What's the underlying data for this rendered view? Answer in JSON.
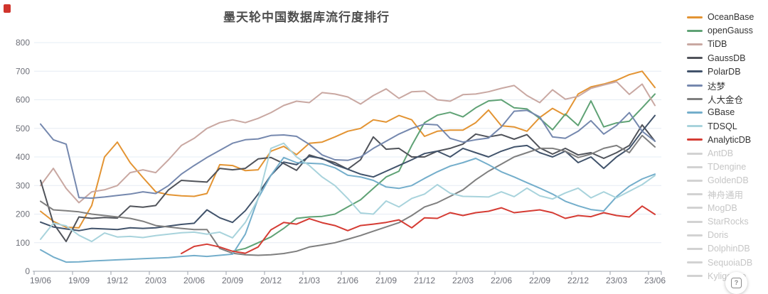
{
  "title": "墨天轮中国数据库流行度排行",
  "colors": {
    "title_text": "#4e4e4e",
    "axis_label": "#6E7079",
    "axis_line": "#9da3ac",
    "grid_line": "#e6ecf4",
    "legend_active_text": "#333333",
    "legend_inactive_text": "#c6c6c6",
    "legend_inactive_swatch": "#d2d2d2",
    "corner_mark": "#d0342c"
  },
  "help_button": {
    "label": "?"
  },
  "chart_data": {
    "type": "line",
    "title": "墨天轮中国数据库流行度排行",
    "xlabel": "",
    "ylabel": "",
    "ylim": [
      0,
      800
    ],
    "y_tick_labels": [
      "0",
      "100",
      "200",
      "300",
      "400",
      "500",
      "600",
      "700",
      "800"
    ],
    "x_tick_labels": [
      "19/06",
      "19/09",
      "19/12",
      "20/03",
      "20/06",
      "20/09",
      "20/12",
      "21/03",
      "21/06",
      "21/09",
      "21/12",
      "22/03",
      "22/06",
      "22/09",
      "22/12",
      "23/03",
      "23/06"
    ],
    "x_unit": "month",
    "points_per_series": 49,
    "grid": true,
    "legend_position": "right",
    "series": [
      {
        "name": "OceanBase",
        "color": "#E39433",
        "values": [
          210,
          175,
          154,
          152,
          230,
          400,
          452,
          380,
          328,
          278,
          268,
          264,
          262,
          272,
          373,
          370,
          352,
          355,
          420,
          437,
          408,
          448,
          452,
          470,
          490,
          500,
          530,
          522,
          545,
          530,
          472,
          490,
          494,
          494,
          520,
          564,
          509,
          505,
          490,
          538,
          570,
          545,
          620,
          645,
          655,
          668,
          688,
          700,
          643
        ]
      },
      {
        "name": "openGauss",
        "color": "#5FA275",
        "values": [
          null,
          null,
          null,
          null,
          null,
          null,
          null,
          null,
          null,
          null,
          null,
          null,
          null,
          null,
          null,
          70,
          80,
          100,
          120,
          150,
          185,
          190,
          192,
          200,
          225,
          250,
          290,
          330,
          350,
          440,
          520,
          546,
          556,
          540,
          572,
          596,
          600,
          572,
          568,
          535,
          495,
          550,
          510,
          596,
          505,
          519,
          525,
          572,
          620
        ]
      },
      {
        "name": "TiDB",
        "color": "#C9A8A2",
        "values": [
          300,
          360,
          290,
          240,
          278,
          285,
          300,
          345,
          355,
          345,
          390,
          440,
          465,
          500,
          520,
          530,
          520,
          535,
          555,
          580,
          595,
          590,
          625,
          620,
          610,
          585,
          615,
          638,
          605,
          628,
          630,
          600,
          595,
          618,
          620,
          628,
          640,
          650,
          615,
          590,
          635,
          602,
          612,
          640,
          652,
          663,
          619,
          655,
          580
        ]
      },
      {
        "name": "GaussDB",
        "color": "#50535A",
        "values": [
          318,
          168,
          104,
          190,
          185,
          188,
          186,
          228,
          224,
          230,
          285,
          318,
          315,
          312,
          360,
          355,
          360,
          393,
          398,
          377,
          353,
          407,
          393,
          380,
          357,
          390,
          470,
          427,
          430,
          400,
          400,
          420,
          430,
          445,
          480,
          470,
          478,
          462,
          478,
          432,
          410,
          430,
          407,
          415,
          395,
          415,
          440,
          512,
          455
        ]
      },
      {
        "name": "PolarDB",
        "color": "#41536B",
        "values": [
          172,
          155,
          148,
          142,
          150,
          148,
          146,
          152,
          150,
          152,
          158,
          164,
          168,
          215,
          187,
          171,
          212,
          270,
          336,
          382,
          373,
          402,
          395,
          373,
          357,
          340,
          330,
          350,
          370,
          390,
          412,
          420,
          400,
          430,
          415,
          400,
          420,
          435,
          440,
          415,
          400,
          420,
          380,
          400,
          360,
          400,
          430,
          490,
          545
        ]
      },
      {
        "name": "达梦",
        "color": "#7588AE",
        "values": [
          515,
          460,
          445,
          258,
          256,
          260,
          265,
          270,
          278,
          272,
          300,
          340,
          370,
          398,
          423,
          448,
          460,
          463,
          475,
          477,
          472,
          444,
          407,
          390,
          388,
          400,
          430,
          455,
          480,
          500,
          515,
          512,
          465,
          452,
          460,
          466,
          505,
          560,
          563,
          540,
          470,
          465,
          490,
          527,
          480,
          510,
          555,
          490,
          455
        ]
      },
      {
        "name": "人大金仓",
        "color": "#7F7F7F",
        "values": [
          245,
          215,
          212,
          208,
          200,
          195,
          190,
          185,
          175,
          160,
          155,
          150,
          146,
          146,
          80,
          63,
          58,
          56,
          58,
          62,
          70,
          85,
          92,
          100,
          112,
          125,
          140,
          155,
          170,
          195,
          225,
          240,
          262,
          285,
          320,
          350,
          375,
          400,
          415,
          430,
          430,
          420,
          398,
          410,
          430,
          440,
          415,
          475,
          435
        ]
      },
      {
        "name": "GBase",
        "color": "#74AECB",
        "values": [
          75,
          50,
          32,
          33,
          36,
          38,
          40,
          42,
          44,
          46,
          48,
          52,
          55,
          52,
          56,
          60,
          130,
          255,
          336,
          398,
          380,
          378,
          376,
          362,
          336,
          330,
          318,
          295,
          290,
          300,
          325,
          348,
          368,
          380,
          395,
          373,
          348,
          330,
          310,
          291,
          270,
          245,
          229,
          216,
          211,
          261,
          298,
          323,
          340
        ]
      },
      {
        "name": "TDSQL",
        "color": "#A8D3DC",
        "values": [
          112,
          168,
          159,
          126,
          104,
          134,
          120,
          122,
          118,
          125,
          130,
          135,
          137,
          130,
          137,
          117,
          171,
          253,
          430,
          448,
          400,
          370,
          330,
          300,
          255,
          204,
          200,
          246,
          225,
          255,
          270,
          303,
          273,
          262,
          261,
          260,
          278,
          261,
          291,
          264,
          253,
          274,
          291,
          257,
          278,
          257,
          280,
          303,
          335
        ]
      },
      {
        "name": "AnalyticDB",
        "color": "#D53C34",
        "values": [
          null,
          null,
          null,
          null,
          null,
          null,
          null,
          null,
          null,
          null,
          null,
          62,
          87,
          95,
          85,
          70,
          63,
          85,
          145,
          171,
          165,
          184,
          170,
          160,
          142,
          160,
          165,
          171,
          180,
          152,
          187,
          185,
          205,
          195,
          205,
          210,
          222,
          205,
          210,
          215,
          205,
          185,
          195,
          191,
          205,
          195,
          190,
          228,
          199
        ]
      }
    ]
  },
  "legend": {
    "items": [
      {
        "label": "OceanBase",
        "active": true
      },
      {
        "label": "openGauss",
        "active": true
      },
      {
        "label": "TiDB",
        "active": true
      },
      {
        "label": "GaussDB",
        "active": true
      },
      {
        "label": "PolarDB",
        "active": true
      },
      {
        "label": "达梦",
        "active": true
      },
      {
        "label": "人大金仓",
        "active": true
      },
      {
        "label": "GBase",
        "active": true
      },
      {
        "label": "TDSQL",
        "active": true
      },
      {
        "label": "AnalyticDB",
        "active": true
      },
      {
        "label": "AntDB",
        "active": false
      },
      {
        "label": "TDengine",
        "active": false
      },
      {
        "label": "GoldenDB",
        "active": false
      },
      {
        "label": "神舟通用",
        "active": false
      },
      {
        "label": "MogDB",
        "active": false
      },
      {
        "label": "StarRocks",
        "active": false
      },
      {
        "label": "Doris",
        "active": false
      },
      {
        "label": "DolphinDB",
        "active": false
      },
      {
        "label": "SequoiaDB",
        "active": false
      },
      {
        "label": "Kyligence",
        "active": false
      }
    ]
  }
}
